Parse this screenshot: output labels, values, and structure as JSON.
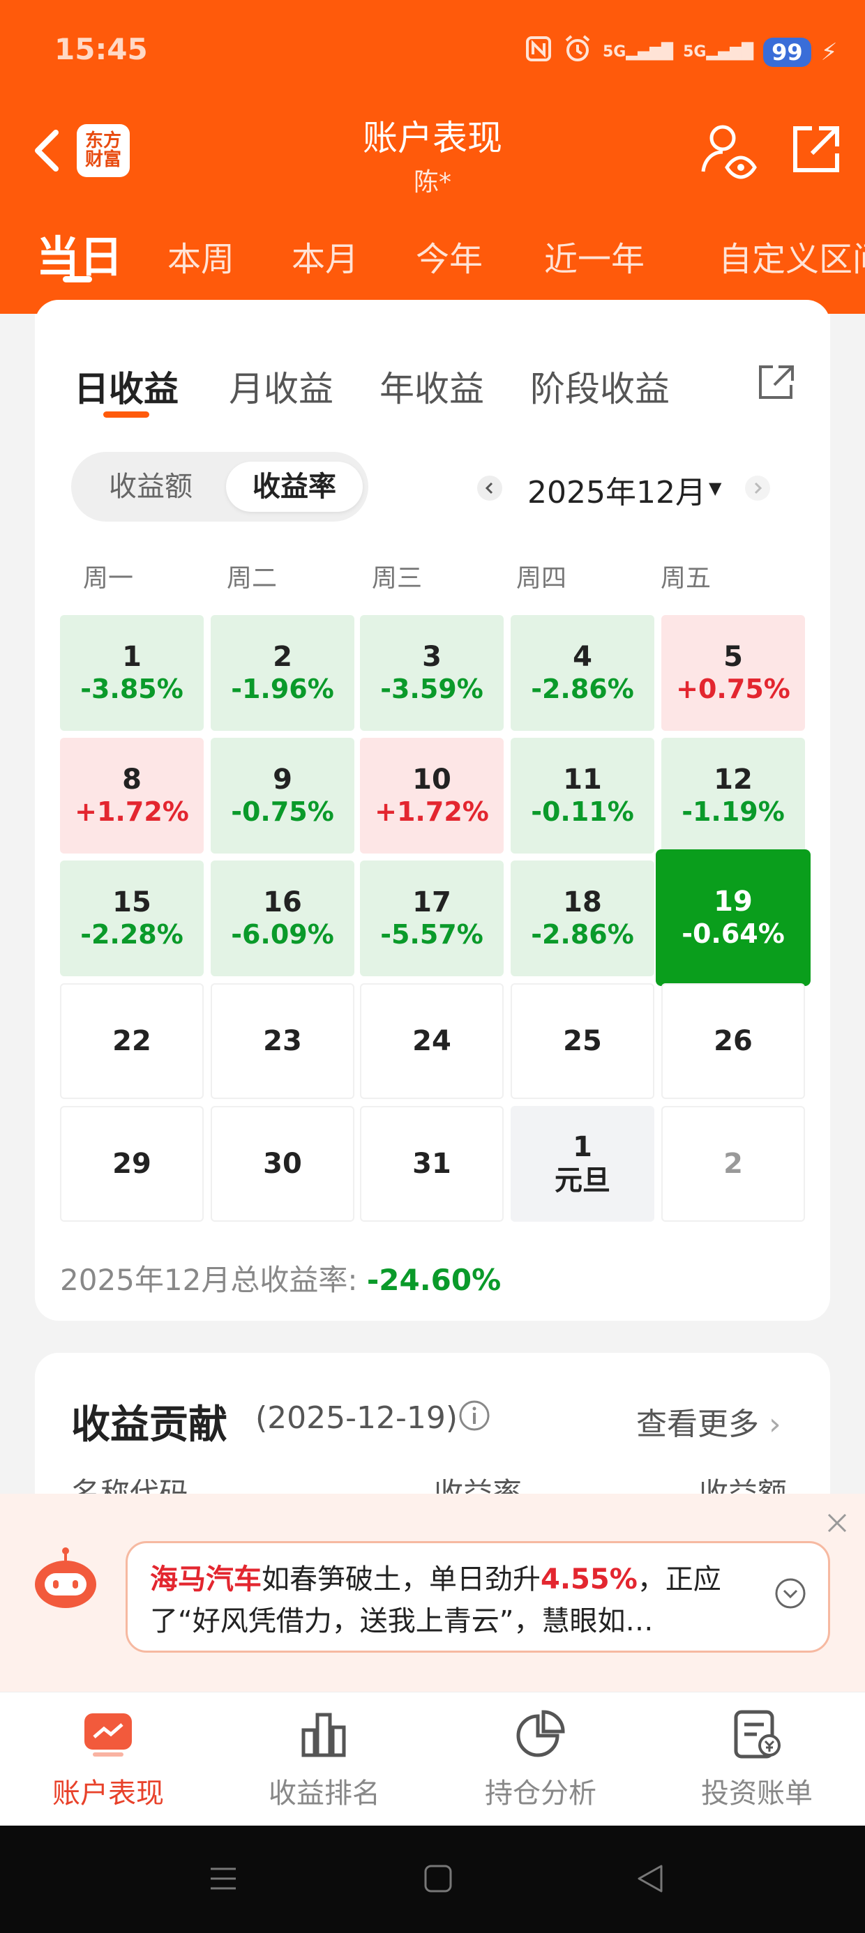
{
  "status_bar": {
    "time": "15:45",
    "battery": "99",
    "signal1": "5G",
    "signal2": "5G"
  },
  "header": {
    "brand_line1": "东方",
    "brand_line2": "财富",
    "title": "账户表现",
    "subtitle": "陈*"
  },
  "range_tabs": [
    "当日",
    "本周",
    "本月",
    "今年",
    "近一年",
    "自定义区间"
  ],
  "sub_tabs": [
    "日收益",
    "月收益",
    "年收益",
    "阶段收益"
  ],
  "toggle": {
    "amount": "收益额",
    "rate": "收益率"
  },
  "month": "2025年12月",
  "weekdays": [
    "周一",
    "周二",
    "周三",
    "周四",
    "周五"
  ],
  "calendar": [
    [
      {
        "day": "1",
        "rate": "-3.85%"
      },
      {
        "day": "2",
        "rate": "-1.96%"
      },
      {
        "day": "3",
        "rate": "-3.59%"
      },
      {
        "day": "4",
        "rate": "-2.86%"
      },
      {
        "day": "5",
        "rate": "+0.75%"
      }
    ],
    [
      {
        "day": "8",
        "rate": "+1.72%"
      },
      {
        "day": "9",
        "rate": "-0.75%"
      },
      {
        "day": "10",
        "rate": "+1.72%"
      },
      {
        "day": "11",
        "rate": "-0.11%"
      },
      {
        "day": "12",
        "rate": "-1.19%"
      }
    ],
    [
      {
        "day": "15",
        "rate": "-2.28%"
      },
      {
        "day": "16",
        "rate": "-6.09%"
      },
      {
        "day": "17",
        "rate": "-5.57%"
      },
      {
        "day": "18",
        "rate": "-2.86%"
      },
      {
        "day": "19",
        "rate": "-0.64%"
      }
    ],
    [
      {
        "day": "22"
      },
      {
        "day": "23"
      },
      {
        "day": "24"
      },
      {
        "day": "25"
      },
      {
        "day": "26"
      }
    ],
    [
      {
        "day": "29"
      },
      {
        "day": "30"
      },
      {
        "day": "31"
      },
      {
        "day": "1",
        "note": "元旦"
      },
      {
        "day": "2"
      }
    ]
  ],
  "total": {
    "label": "2025年12月总收益率:",
    "value": "-24.60%"
  },
  "contribution": {
    "title": "收益贡献",
    "date": "(2025-12-19)",
    "see_more": "查看更多",
    "columns": [
      "名称代码",
      "收益率",
      "收益额"
    ]
  },
  "ai_banner": {
    "stock": "海马汽车",
    "text1": "如春笋破土，单日劲升",
    "gain": "4.55%",
    "text2": "，正应了“好风凭借力，送我上青云”，慧眼如…"
  },
  "bottom_nav": [
    "账户表现",
    "收益排名",
    "持仓分析",
    "投资账单"
  ],
  "colors": {
    "brand": "#ff5a0b",
    "gain": "#e3262f",
    "loss": "#0a9a2a",
    "selected": "#0a9e1c"
  }
}
